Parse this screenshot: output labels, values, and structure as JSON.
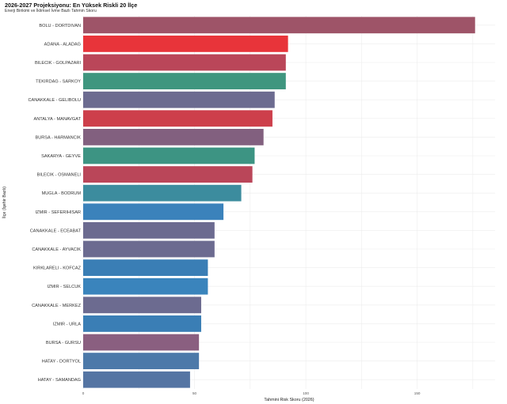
{
  "chart_data": {
    "type": "bar",
    "orientation": "horizontal",
    "title": "2026-2027 Projeksiyonu: En Yüksek Riskli 20 İlçe",
    "subtitle": "Enerji Birikimi ve İklimsel İvme Bazlı Tahmin Skoru",
    "xlabel": "Tahmini Risk Skoru (2026)",
    "ylabel": "İlçe (İşehir Bazlı)",
    "xlim": [
      0,
      185
    ],
    "xticks": [
      0,
      50,
      100,
      150
    ],
    "grid": true,
    "legend": "none",
    "categories": [
      "BOLU - DORTDIVAN",
      "ADANA - ALADAG",
      "BILECIK - GOLPAZARI",
      "TEKIRDAG - SARKOY",
      "CANAKKALE - GELIBOLU",
      "ANTALYA - MANAVGAT",
      "BURSA - HARMANCIK",
      "SAKARYA - GEYVE",
      "BILECIK - OSMANELI",
      "MUGLA - BODRUM",
      "IZMIR - SEFERIHISAR",
      "CANAKKALE - ECEABAT",
      "CANAKKALE - AYVACIK",
      "KIRKLARELI - KOFCAZ",
      "IZMIR - SELCUK",
      "CANAKKALE - MERKEZ",
      "IZMIR - URLA",
      "BURSA - GURSU",
      "HATAY - DORTYOL",
      "HATAY - SAMANDAG"
    ],
    "values": [
      176,
      92,
      91,
      91,
      86,
      85,
      81,
      77,
      76,
      71,
      63,
      59,
      59,
      56,
      56,
      53,
      53,
      52,
      52,
      48
    ],
    "colors": [
      "#9E5468",
      "#E8343A",
      "#BA4659",
      "#3F967F",
      "#6C6B90",
      "#CD3F4B",
      "#82607F",
      "#3D9483",
      "#BA4659",
      "#3C8C9E",
      "#3B82BB",
      "#6C6B90",
      "#6C6B90",
      "#3A7EB5",
      "#3A84BC",
      "#6C6B90",
      "#3A7EB5",
      "#8A5F80",
      "#4C79A9",
      "#5575A3"
    ]
  }
}
